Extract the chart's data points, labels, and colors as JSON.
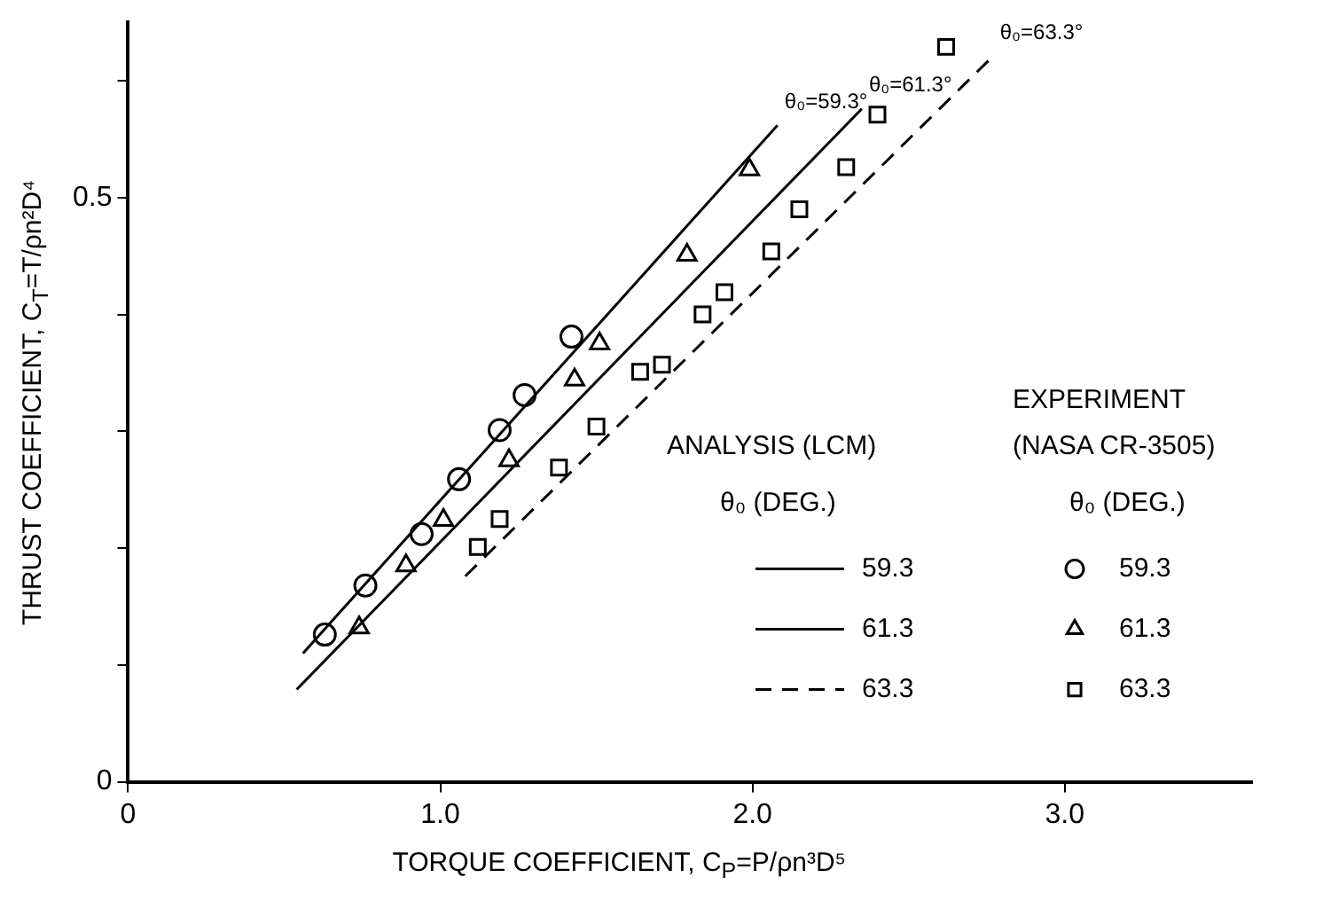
{
  "chart_data": {
    "type": "scatter",
    "xlabel": "TORQUE COEFFICIENT, C$_{P}$=P/ρn³D⁵",
    "ylabel": "THRUST COEFFICIENT, C$_{T}$=T/ρn²D⁴",
    "xlim": [
      0,
      3.6
    ],
    "ylim": [
      0,
      0.65
    ],
    "xticks": [
      {
        "value": 0,
        "label": "0"
      },
      {
        "value": 1,
        "label": "1.0"
      },
      {
        "value": 2,
        "label": "2.0"
      },
      {
        "value": 3,
        "label": "3.0"
      }
    ],
    "yticks": [
      {
        "value": 0,
        "label": "0"
      },
      {
        "value": 0.1,
        "label": null
      },
      {
        "value": 0.2,
        "label": null
      },
      {
        "value": 0.3,
        "label": null
      },
      {
        "value": 0.4,
        "label": null
      },
      {
        "value": 0.5,
        "label": "0.5"
      },
      {
        "value": 0.6,
        "label": null
      }
    ],
    "grid": false,
    "legend": "bottom right",
    "series": [
      {
        "name": "59.3",
        "type": "line",
        "color": "#000000",
        "line_style": "solid",
        "marker": "none",
        "x": [
          0.56,
          2.08
        ],
        "values": [
          0.11,
          0.562
        ]
      },
      {
        "name": "61.3",
        "type": "line",
        "color": "#000000",
        "line_style": "solid",
        "marker": "none",
        "x": [
          0.54,
          2.35
        ],
        "values": [
          0.079,
          0.576
        ]
      },
      {
        "name": "63.3",
        "type": "line",
        "color": "#000000",
        "line_style": "dashed",
        "marker": "none",
        "x": [
          1.08,
          2.77
        ],
        "values": [
          0.176,
          0.621
        ]
      },
      {
        "name": "59.3",
        "type": "scatter",
        "color": "#000000",
        "marker": "circle",
        "x": [
          0.63,
          0.76,
          0.94,
          1.06,
          1.19,
          1.27,
          1.42
        ],
        "values": [
          0.126,
          0.168,
          0.212,
          0.259,
          0.301,
          0.331,
          0.381
        ]
      },
      {
        "name": "61.3",
        "type": "scatter",
        "color": "#000000",
        "marker": "triangle",
        "x": [
          0.74,
          0.89,
          1.01,
          1.22,
          1.43,
          1.51,
          1.79,
          1.99
        ],
        "values": [
          0.132,
          0.185,
          0.224,
          0.275,
          0.344,
          0.375,
          0.451,
          0.524
        ]
      },
      {
        "name": "63.3",
        "type": "scatter",
        "color": "#000000",
        "marker": "square",
        "x": [
          1.12,
          1.19,
          1.38,
          1.5,
          1.64,
          1.71,
          1.84,
          1.91,
          2.06,
          2.15,
          2.3,
          2.4,
          2.62
        ],
        "values": [
          0.201,
          0.225,
          0.269,
          0.304,
          0.351,
          0.357,
          0.4,
          0.419,
          0.454,
          0.49,
          0.526,
          0.571,
          0.629
        ]
      }
    ],
    "annotations": [
      {
        "text": "θ₀=59.3°",
        "x": 2.08,
        "y": 0.562
      },
      {
        "text": "θ₀=61.3°",
        "x": 2.35,
        "y": 0.576
      },
      {
        "text": "θ₀=63.3°",
        "x": 2.77,
        "y": 0.621
      },
      "ANALYSIS (LCM)",
      "θ₀ (DEG.)",
      "EXPERIMENT",
      "(NASA CR-3505)",
      "θ₀ (DEG.)"
    ]
  }
}
